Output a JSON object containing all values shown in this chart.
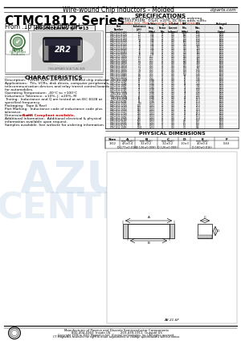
{
  "title_top": "Wire-wound Chip Inductors - Molded",
  "website": "ctparts.com",
  "series_name": "CTMC1812 Series",
  "series_range": "From .10 μH to 1,000 μH",
  "eng_kit": "ENGINEERING KIT #13",
  "specs_title": "SPECIFICATIONS",
  "specs_note1": "Please specify inductance value when ordering",
  "specs_note2": "CTMC1812-R10M, .10μH, ±20%, DC Bias adds suffix",
  "specs_note3": "Order last. Please specify “J” for J-tolerance",
  "char_title": "CHARACTERISTICS",
  "char_lines": [
    "Description:  Ferrite core, wire-wound molded chip inductor",
    "Applications:  TVs, VCRs, disk drives, computer peripherals,",
    "telecommunication devices and relay transit control boards",
    "for automobiles.",
    "Operating Temperature: -40°C to +100°C",
    "Inductance Tolerance: ±10%, J; ±20%, M",
    "Testing:  Inductance and Q are tested at an IEC 6028 at",
    "specified frequency.",
    "Packaging:  Tape & Reel",
    "Part Marking:  Inductance code of inductance code plus",
    "tolerance.",
    "Dimensions are ",
    "Additional Information:  Additional electrical & physical",
    "information available upon request.",
    "Samples available. See website for ordering information."
  ],
  "rohs_line_idx": 11,
  "rohs_text": "RoHS Compliant available.",
  "phys_title": "PHYSICAL DIMENSIONS",
  "phys_col_headers": [
    "Size",
    "A",
    "B",
    "C",
    "D",
    "E",
    "F"
  ],
  "phys_col_subheads": [
    "",
    "mm (inch)",
    "mm (inch)",
    "mm (inch)",
    "",
    "mm (inch)",
    ""
  ],
  "phys_row": [
    "1812",
    "4.5±0.4\n(0.177±0.016)",
    "3.2±0.2\n(0.126±0.008)",
    "3.2±0.2\n(0.126±0.008)",
    "1.0±3",
    "4.0±0.4\n(0.160±0.016)",
    "0.44"
  ],
  "footer_mfr": "Manufacturer of Passive and Discrete Semiconductor Components",
  "footer_phone": "800-404-5903  Inside US          203-439-1911  Outside US",
  "footer_copy": "Copyright 1994 to 2011 Magnetics Intl. (Central technologies, Inc.) All rights reserved.",
  "footer_note": "CT Magnetics reserves the right to make adjustments or change specifications without notice.",
  "table_col_headers": [
    "Part\nNumber",
    "Inductance\n(μH)",
    "Ir Test\nFreq.\n(MHz)",
    "Q\nFactor\nMin.",
    "Ir Rated\nCurrent\n(mArms)",
    "SRF\nMin.\n(MHz)",
    "DCR\nMax.\n(Ω)",
    "Packaged\nQty.\n(Units)"
  ],
  "table_rows": [
    [
      "CTMC1812-R10M",
      ".10",
      "7.96",
      "40",
      "300",
      "1000",
      ".120",
      "5000"
    ],
    [
      "CTMC1812-R12M",
      ".12",
      "7.96",
      "40",
      "300",
      "900",
      ".120",
      "5000"
    ],
    [
      "CTMC1812-R15M",
      ".15",
      "7.96",
      "40",
      "300",
      "800",
      ".120",
      "5000"
    ],
    [
      "CTMC1812-R18M",
      ".18",
      "7.96",
      "40",
      "300",
      "700",
      ".150",
      "5000"
    ],
    [
      "CTMC1812-R22M",
      ".22",
      "7.96",
      "40",
      "300",
      "600",
      ".150",
      "5000"
    ],
    [
      "CTMC1812-R27M",
      ".27",
      "7.96",
      "40",
      "300",
      "500",
      ".180",
      "5000"
    ],
    [
      "CTMC1812-R33M",
      ".33",
      "7.96",
      "40",
      "300",
      "450",
      ".180",
      "5000"
    ],
    [
      "CTMC1812-R39M",
      ".39",
      "7.96",
      "40",
      "300",
      "400",
      ".200",
      "5000"
    ],
    [
      "CTMC1812-R47M",
      ".47",
      "7.96",
      "40",
      "300",
      "350",
      ".220",
      "5000"
    ],
    [
      "CTMC1812-R56M",
      ".56",
      "7.96",
      "40",
      "300",
      "320",
      ".250",
      "5000"
    ],
    [
      "CTMC1812-R68M",
      ".68",
      "7.96",
      "40",
      "300",
      "300",
      ".280",
      "5000"
    ],
    [
      "CTMC1812-R82M",
      ".82",
      "7.96",
      "40",
      "300",
      "270",
      ".320",
      "5000"
    ],
    [
      "CTMC1812-1R0M",
      "1.0",
      "2.52",
      "40",
      "300",
      "250",
      ".360",
      "5000"
    ],
    [
      "CTMC1812-1R2M",
      "1.2",
      "2.52",
      "40",
      "300",
      "220",
      ".420",
      "5000"
    ],
    [
      "CTMC1812-1R5M",
      "1.5",
      "2.52",
      "40",
      "300",
      "200",
      ".480",
      "5000"
    ],
    [
      "CTMC1812-1R8M",
      "1.8",
      "2.52",
      "40",
      "300",
      "180",
      ".550",
      "5000"
    ],
    [
      "CTMC1812-2R2M",
      "2.2",
      "2.52",
      "40",
      "300",
      "160",
      ".650",
      "5000"
    ],
    [
      "CTMC1812-2R7M",
      "2.7",
      "2.52",
      "40",
      "300",
      "145",
      ".750",
      "5000"
    ],
    [
      "CTMC1812-3R3M",
      "3.3",
      "2.52",
      "40",
      "300",
      "130",
      ".900",
      "5000"
    ],
    [
      "CTMC1812-3R9M",
      "3.9",
      "2.52",
      "40",
      "300",
      "120",
      "1.00",
      "5000"
    ],
    [
      "CTMC1812-4R7M",
      "4.7",
      "2.52",
      "40",
      "300",
      "110",
      "1.20",
      "5000"
    ],
    [
      "CTMC1812-5R6M",
      "5.6",
      "2.52",
      "40",
      "300",
      "100",
      "1.40",
      "5000"
    ],
    [
      "CTMC1812-6R8M",
      "6.8",
      "2.52",
      "40",
      "300",
      "90",
      "1.60",
      "5000"
    ],
    [
      "CTMC1812-8R2M",
      "8.2",
      "2.52",
      "40",
      "300",
      "80",
      "1.90",
      "5000"
    ],
    [
      "CTMC1812-100M",
      "10",
      "0.796",
      "40",
      "300",
      "70",
      "2.30",
      "5000"
    ],
    [
      "CTMC1812-120M",
      "12",
      "0.796",
      "40",
      "300",
      "65",
      "2.70",
      "5000"
    ],
    [
      "CTMC1812-150M",
      "15",
      "0.796",
      "40",
      "300",
      "58",
      "3.30",
      "5000"
    ],
    [
      "CTMC1812-180M",
      "18",
      "0.796",
      "40",
      "300",
      "52",
      "3.90",
      "5000"
    ],
    [
      "CTMC1812-220M",
      "22",
      "0.796",
      "40",
      "300",
      "47",
      "4.70",
      "5000"
    ],
    [
      "CTMC1812-270M",
      "27",
      "0.796",
      "40",
      "300",
      "42",
      "5.80",
      "5000"
    ],
    [
      "CTMC1812-330M",
      "33",
      "0.796",
      "40",
      "300",
      "38",
      "7.00",
      "5000"
    ],
    [
      "CTMC1812-390M",
      "39",
      "0.796",
      "40",
      "300",
      "35",
      "8.20",
      "5000"
    ],
    [
      "CTMC1812-470M",
      "47",
      "0.796",
      "40",
      "300",
      "32",
      "9.80",
      "5000"
    ],
    [
      "CTMC1812-560M",
      "56",
      "0.796",
      "40",
      "300",
      "29",
      "11.5",
      "5000"
    ],
    [
      "CTMC1812-680M",
      "68",
      "0.796",
      "40",
      "300",
      "26",
      "14.0",
      "5000"
    ],
    [
      "CTMC1812-820M",
      "82",
      "0.796",
      "40",
      "300",
      "24",
      "17.0",
      "5000"
    ],
    [
      "CTMC1812-101M",
      "100",
      "0.252",
      "40",
      "300",
      "22",
      "20.0",
      "5000"
    ],
    [
      "CTMC1812-121M",
      "120",
      "0.252",
      "40",
      "300",
      "20",
      "24.0",
      "5000"
    ],
    [
      "CTMC1812-151M",
      "150",
      "0.252",
      "40",
      "300",
      "18",
      "30.0",
      "5000"
    ],
    [
      "CTMC1812-181M",
      "180",
      "0.252",
      "40",
      "300",
      "16",
      "36.0",
      "5000"
    ],
    [
      "CTMC1812-221M",
      "220",
      "0.252",
      "40",
      "300",
      "14",
      "44.0",
      "5000"
    ],
    [
      "CTMC1812-271M",
      "270",
      "0.252",
      "40",
      "300",
      "13",
      "54.0",
      "5000"
    ],
    [
      "CTMC1812-331M",
      "330",
      "0.252",
      "40",
      "300",
      "12",
      "65.0",
      "5000"
    ],
    [
      "CTMC1812-391M",
      "390",
      "0.252",
      "40",
      "300",
      "11",
      "77.0",
      "5000"
    ],
    [
      "CTMC1812-471M",
      "470",
      "0.252",
      "40",
      "300",
      "10",
      "92.0",
      "5000"
    ],
    [
      "CTMC1812-561M",
      "560",
      "0.252",
      "40",
      "300",
      "9.0",
      "110",
      "5000"
    ],
    [
      "CTMC1812-681M",
      "680",
      "0.252",
      "40",
      "300",
      "8.5",
      "133",
      "5000"
    ],
    [
      "CTMC1812-821M",
      "820",
      "0.252",
      "40",
      "300",
      "8.0",
      "160",
      "5000"
    ],
    [
      "CTMC1812-102M",
      "1000",
      "0.252",
      "40",
      "300",
      "7.0",
      "196",
      "5000"
    ]
  ],
  "bg_color": "#ffffff",
  "watermark_color": "#b0c8e0"
}
